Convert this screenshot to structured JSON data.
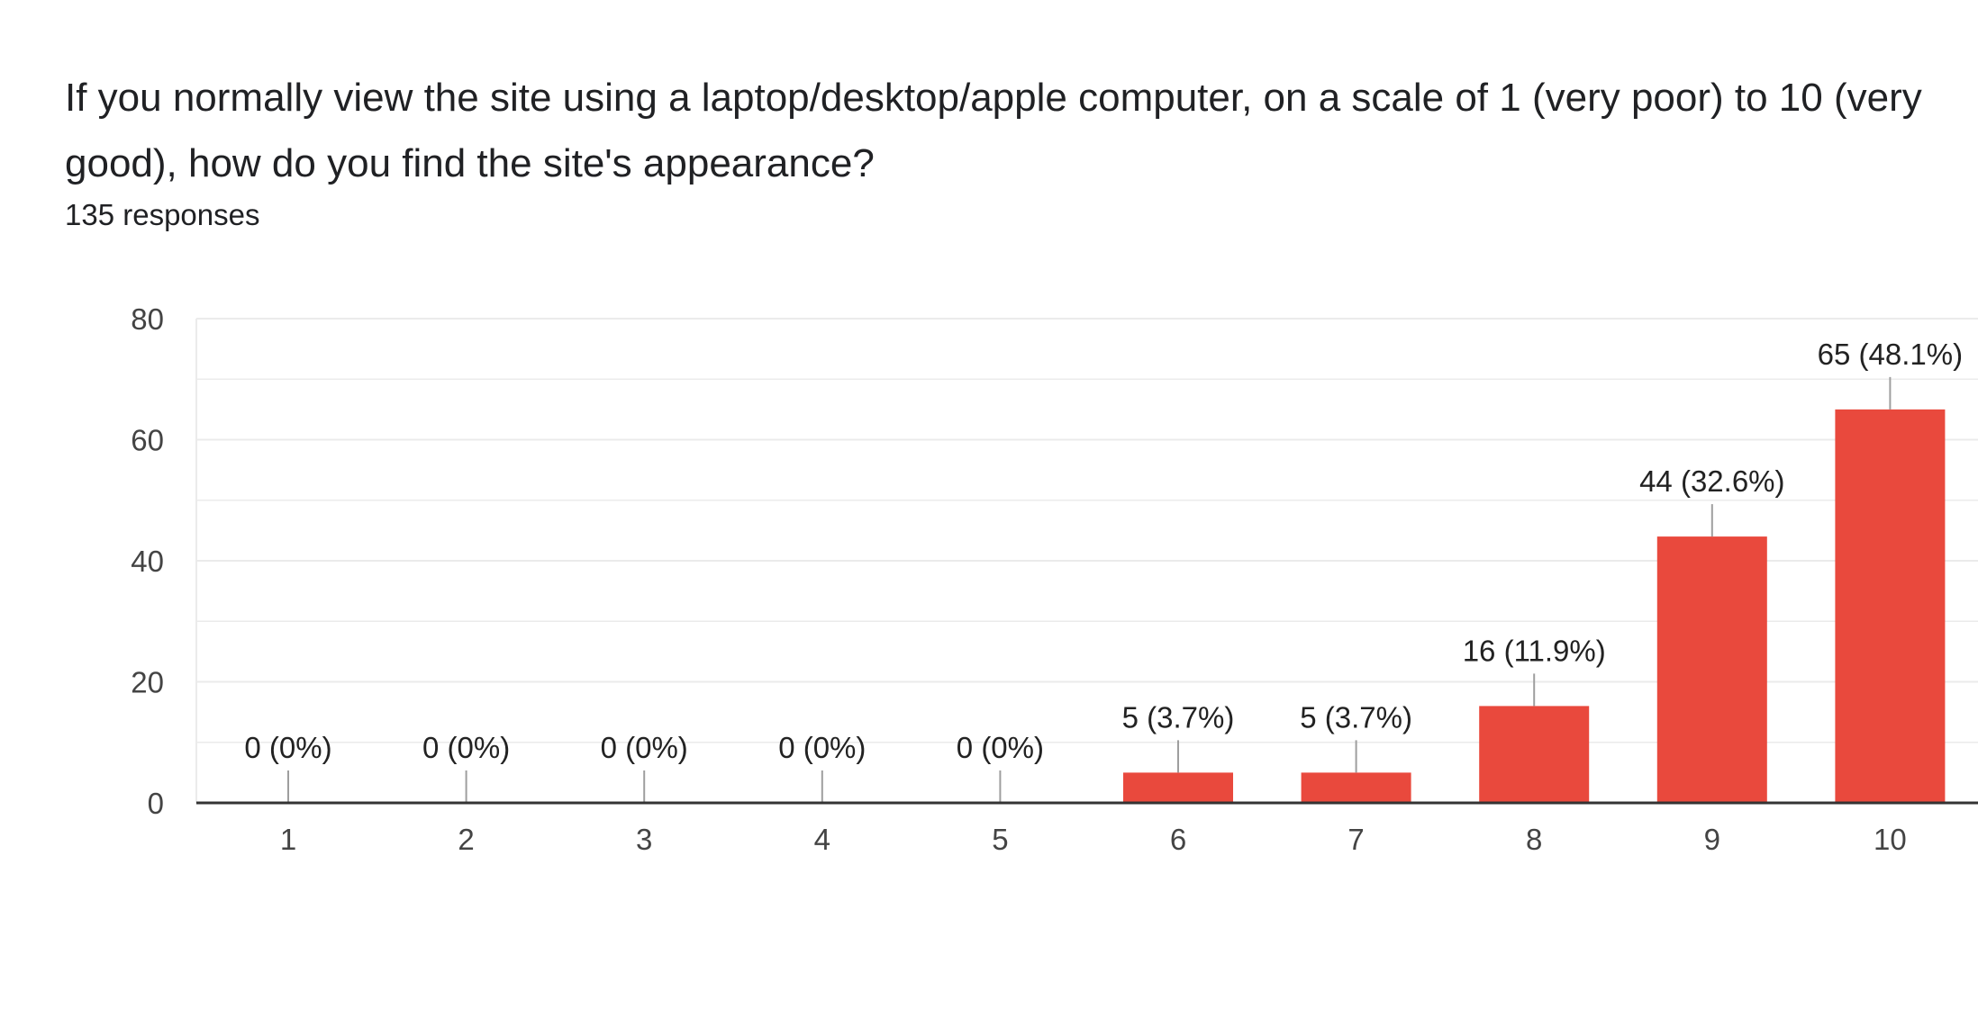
{
  "question": {
    "title": "If you normally view the site using a laptop/desktop/apple computer, on a scale of 1 (very poor) to 10 (very good), how do you find the site's appearance?",
    "responses": "135 responses"
  },
  "colors": {
    "bar": "#E9493D",
    "grid": "#EBEBEB",
    "axis": "#333333",
    "tick_text": "#444444",
    "label_text": "#222222",
    "leader": "#9E9E9E"
  },
  "chart_data": {
    "type": "bar",
    "categories": [
      "1",
      "2",
      "3",
      "4",
      "5",
      "6",
      "7",
      "8",
      "9",
      "10"
    ],
    "values": [
      0,
      0,
      0,
      0,
      0,
      5,
      5,
      16,
      44,
      65
    ],
    "data_labels": [
      "0 (0%)",
      "0 (0%)",
      "0 (0%)",
      "0 (0%)",
      "0 (0%)",
      "5 (3.7%)",
      "5 (3.7%)",
      "16 (11.9%)",
      "44 (32.6%)",
      "65 (48.1%)"
    ],
    "ylim": [
      0,
      80
    ],
    "yticks": [
      0,
      20,
      40,
      60,
      80
    ],
    "title": "",
    "xlabel": "",
    "ylabel": "",
    "grid": true
  }
}
